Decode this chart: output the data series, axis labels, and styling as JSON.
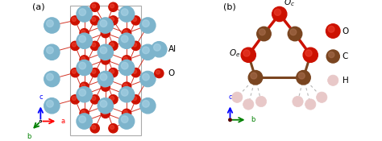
{
  "fig_width": 4.74,
  "fig_height": 1.75,
  "dpi": 100,
  "bg_color": "#ffffff",
  "label_a": "(a)",
  "label_b": "(b)",
  "al_color": "#7db4cc",
  "al_highlight": "#aed6e8",
  "o_color": "#cc1100",
  "o_highlight": "#ee4433",
  "c_color": "#7a4520",
  "c_highlight": "#aa7050",
  "h_color": "#e8c8c8",
  "h_edge": "#d0a8a8",
  "bond_red": "#cc1100",
  "bond_brown": "#7a4520",
  "bond_gray": "#aaaaaa",
  "legend_al_label": "Al",
  "legend_o_label": "O",
  "legend_c_label": "C",
  "legend_h_label": "H"
}
